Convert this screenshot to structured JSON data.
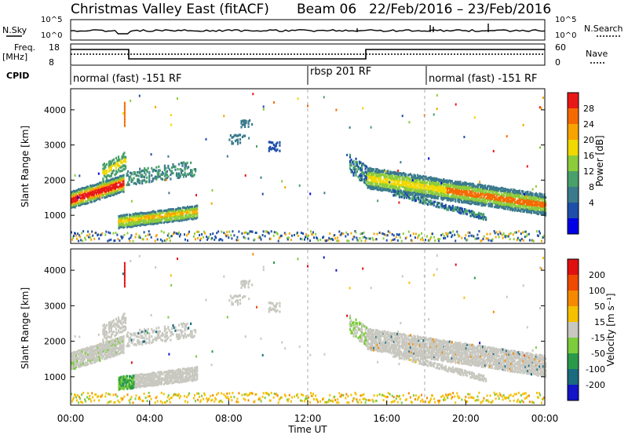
{
  "header": {
    "title": "Christmas Valley East (fitACF)",
    "beam": "Beam 06",
    "date_range": "22/Feb/2016 – 23/Feb/2016"
  },
  "top_panels": {
    "nsky_label": "N.Sky",
    "nsky_ticks": [
      "10^5",
      "10^0"
    ],
    "nsearch_label": "N.Search",
    "nsearch_ticks": [
      "10^5",
      "10^0"
    ],
    "freq_label": "Freq.",
    "freq_unit": "[MHz]",
    "freq_ticks": [
      "18",
      "8"
    ],
    "nave_label": "Nave",
    "nave_ticks": [
      "60",
      "0"
    ],
    "cpid_label": "CPID",
    "cpid_segments": [
      {
        "label": "normal (fast) -151 RF"
      },
      {
        "label": "rbsp 201 RF"
      },
      {
        "label": "normal (fast) -151 RF"
      }
    ]
  },
  "chart_data": [
    {
      "type": "heatmap",
      "name": "power",
      "ylabel": "Slant Range [km]",
      "yticks": [
        "4000",
        "3000",
        "2000",
        "1000"
      ],
      "colorbar_label": "Power [dB]",
      "colorbar_ticks": [
        "28",
        "24",
        "20",
        "16",
        "12",
        "8",
        "4"
      ],
      "colors": [
        "#0000e6",
        "#1e4fa8",
        "#3b7a8c",
        "#49a06a",
        "#8ccc3a",
        "#f0d800",
        "#f7a400",
        "#f56a00",
        "#e81818"
      ]
    },
    {
      "type": "heatmap",
      "name": "velocity",
      "ylabel": "Slant Range [km]",
      "yticks": [
        "4000",
        "3000",
        "2000",
        "1000"
      ],
      "colorbar_label": "Velocity [m s⁻¹]",
      "colorbar_ticks": [
        "200",
        "100",
        "50",
        "15",
        "-15",
        "-50",
        "-100",
        "-200"
      ],
      "colors": [
        "#1414c8",
        "#1a6a80",
        "#2a9a4a",
        "#7ccc3c",
        "#c8c8c0",
        "#f5c000",
        "#f58a00",
        "#ee4a00",
        "#e01010"
      ]
    }
  ],
  "xaxis": {
    "label": "Time UT",
    "ticks": [
      "00:00",
      "04:00",
      "08:00",
      "12:00",
      "16:00",
      "20:00",
      "00:00"
    ]
  }
}
